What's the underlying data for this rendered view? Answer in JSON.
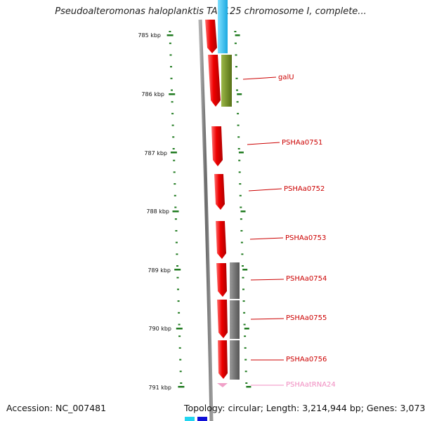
{
  "title": "Pseudoalteromonas haloplanktis TAC125 chromosome I, complete...",
  "accession": "Accession: NC_007481",
  "summary": "Topology: circular; Length: 3,214,944 bp; Genes: 3,073",
  "colors": {
    "tick": "#1f7a1f",
    "gene": "#e80000",
    "trna": "#f0a0c8",
    "label": "#cc0000",
    "trna_label": "#f08cc0",
    "backbone": "#808080",
    "cyan": "#33c3f0",
    "olive": "#6e8b1f",
    "grey": "#707070"
  },
  "kbp_ticks": [
    "785 kbp",
    "786 kbp",
    "787 kbp",
    "788 kbp",
    "789 kbp",
    "790 kbp",
    "791 kbp"
  ],
  "gene_labels": [
    "galU",
    "PSHAa0751",
    "PSHAa0752",
    "PSHAa0753",
    "PSHAa0754",
    "PSHAa0755",
    "PSHAa0756",
    "PSHAatRNA24"
  ]
}
